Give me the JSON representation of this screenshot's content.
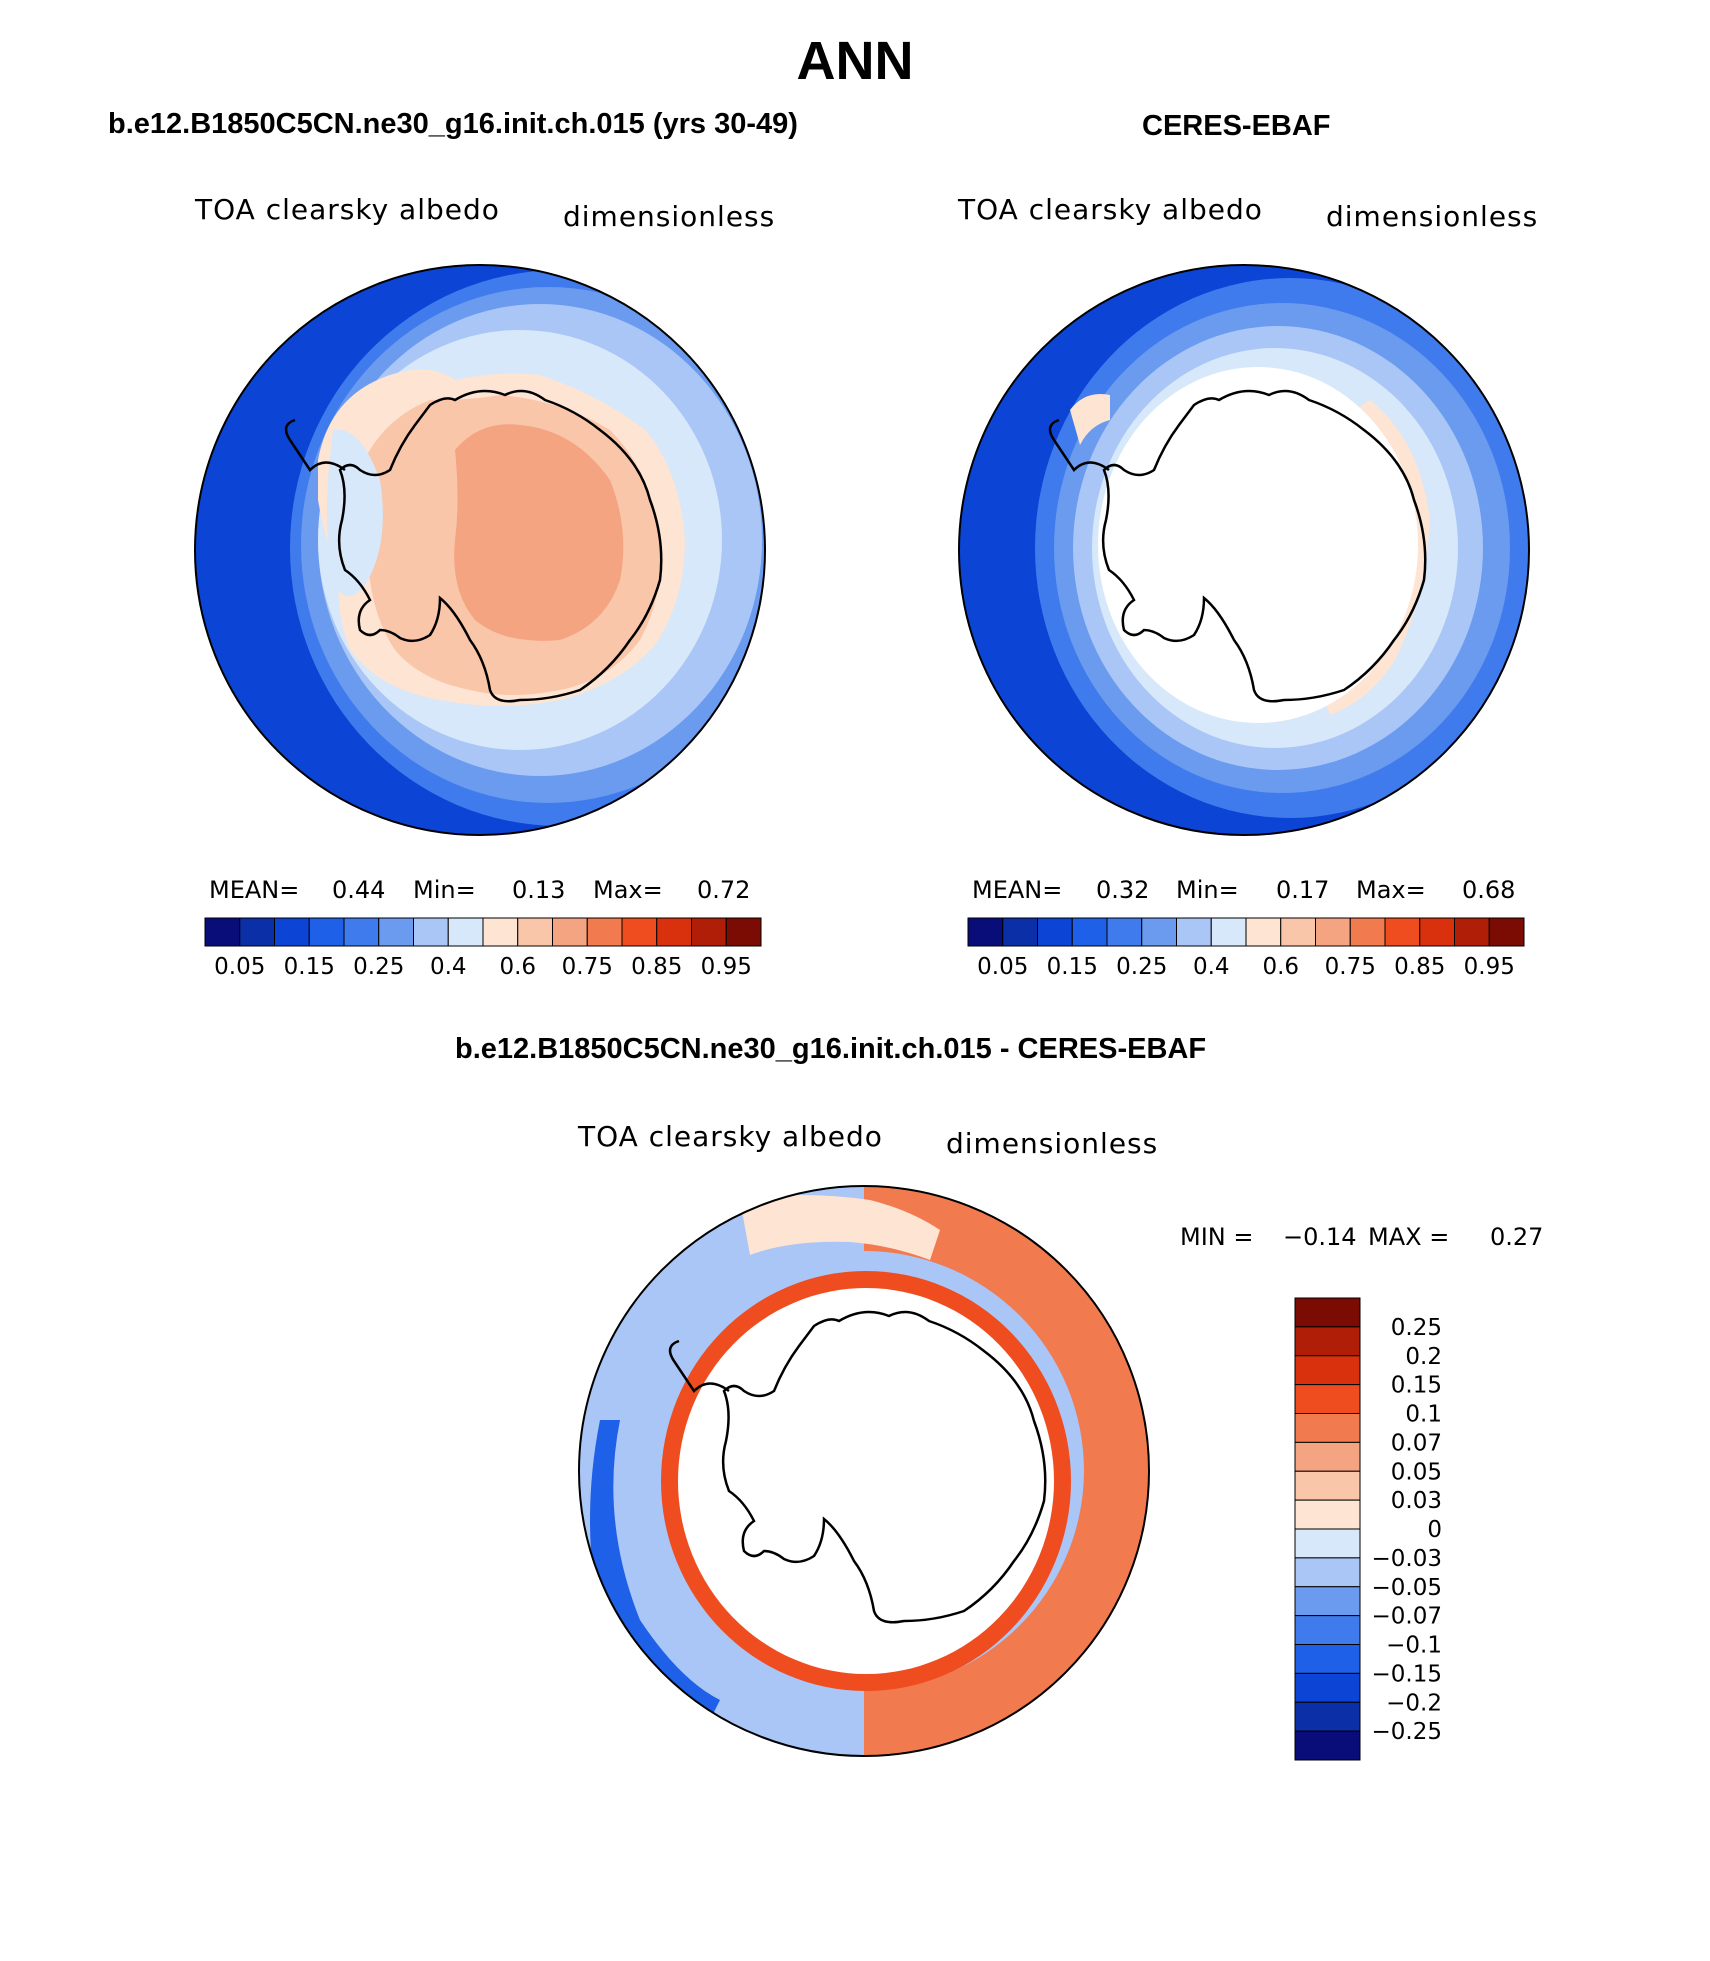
{
  "page": {
    "title": "ANN"
  },
  "colors": {
    "seq_palette": [
      "#080d7a",
      "#0a2fa6",
      "#0c45d6",
      "#1f60e8",
      "#3f7bec",
      "#6a9bef",
      "#a9c6f6",
      "#d6e8fa",
      "#fde4d3",
      "#f9c6aa",
      "#f5a482",
      "#f27a4f",
      "#ef4d1f",
      "#d9300d",
      "#b01e08",
      "#7a0c03"
    ],
    "diff_palette": [
      "#080d7a",
      "#0a2fa6",
      "#0c45d6",
      "#1f60e8",
      "#3f7bec",
      "#6a9bef",
      "#a9c6f6",
      "#d6e8fa",
      "#fde4d3",
      "#f9c6aa",
      "#f5a482",
      "#f27a4f",
      "#ef4d1f",
      "#d9300d",
      "#b01e08",
      "#7a0c03"
    ]
  },
  "chart_data": [
    {
      "type": "contour-map",
      "panel": "model",
      "title": "b.e12.B1850C5CN.ne30_g16.init.ch.015 (yrs 30-49)",
      "variable": "TOA clearsky albedo",
      "units": "dimensionless",
      "stats": {
        "mean_label": "MEAN=",
        "mean": "0.44",
        "min_label": "Min=",
        "min": "0.13",
        "max_label": "Max=",
        "max": "0.72"
      },
      "contour_levels": [
        0.05,
        0.1,
        0.15,
        0.2,
        0.25,
        0.3,
        0.4,
        0.5,
        0.6,
        0.7,
        0.75,
        0.8,
        0.85,
        0.9,
        0.95
      ],
      "colorbar_labels": [
        "0.05",
        "0.15",
        "0.25",
        "0.4",
        "0.6",
        "0.75",
        "0.85",
        "0.95"
      ]
    },
    {
      "type": "contour-map",
      "panel": "obs",
      "title": "CERES-EBAF",
      "variable": "TOA clearsky albedo",
      "units": "dimensionless",
      "stats": {
        "mean_label": "MEAN=",
        "mean": "0.32",
        "min_label": "Min=",
        "min": "0.17",
        "max_label": "Max=",
        "max": "0.68"
      },
      "contour_levels": [
        0.05,
        0.1,
        0.15,
        0.2,
        0.25,
        0.3,
        0.4,
        0.5,
        0.6,
        0.7,
        0.75,
        0.8,
        0.85,
        0.9,
        0.95
      ],
      "colorbar_labels": [
        "0.05",
        "0.15",
        "0.25",
        "0.4",
        "0.6",
        "0.75",
        "0.85",
        "0.95"
      ]
    },
    {
      "type": "contour-map",
      "panel": "difference",
      "title": "b.e12.B1850C5CN.ne30_g16.init.ch.015 - CERES-EBAF",
      "variable": "TOA clearsky albedo",
      "units": "dimensionless",
      "stats": {
        "min_label": "MIN =",
        "min": "−0.14",
        "max_label": "MAX =",
        "max": "0.27"
      },
      "colorbar_labels": [
        "0.25",
        "0.2",
        "0.15",
        "0.1",
        "0.07",
        "0.05",
        "0.03",
        "0",
        "−0.03",
        "−0.05",
        "−0.07",
        "−0.1",
        "−0.15",
        "−0.2",
        "−0.25"
      ]
    }
  ]
}
